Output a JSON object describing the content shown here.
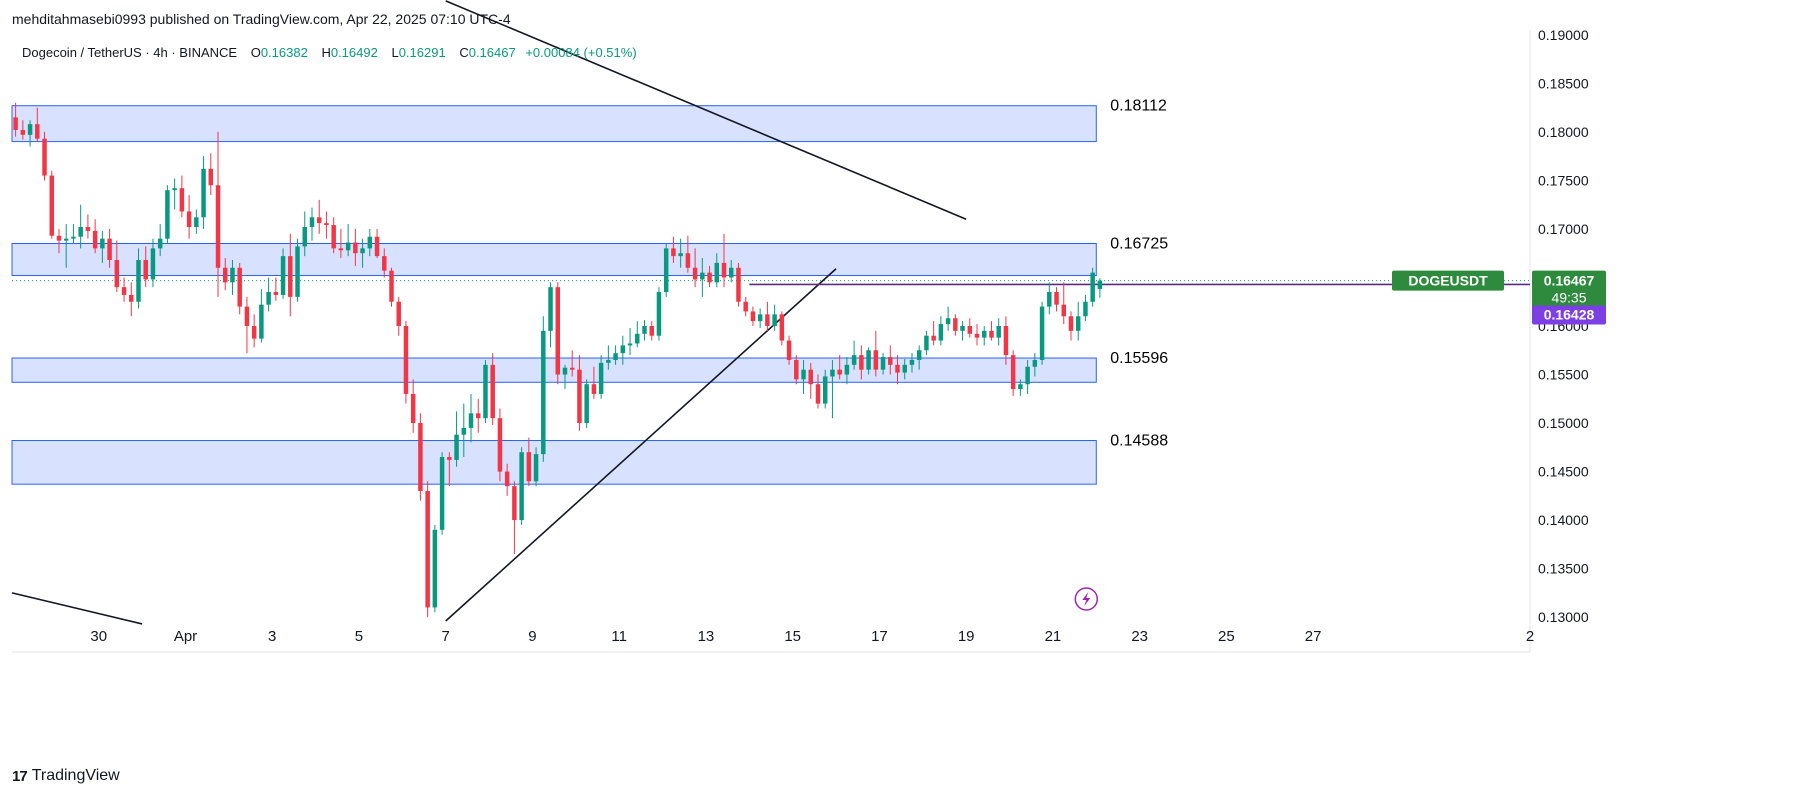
{
  "header": {
    "published_by": "mehditahmasebi0993 published on TradingView.com, Apr 22, 2025 07:10 UTC-4"
  },
  "symbol": {
    "name": "Dogecoin / TetherUS · 4h · BINANCE",
    "o_label": "O",
    "o": "0.16382",
    "h_label": "H",
    "h": "0.16492",
    "l_label": "L",
    "l": "0.16291",
    "c_label": "C",
    "c": "0.16467",
    "change": "+0.00084 (+0.51%)"
  },
  "footer": {
    "brand": "TradingView"
  },
  "colors": {
    "up": "#089981",
    "down": "#f23645",
    "zone_fill": "#d1dcfd",
    "zone_stroke": "#2962ff",
    "price_tag": "#2e8b3d",
    "prev_tag": "#7b3fe4",
    "trendline": "#131722",
    "grid": "#e0e3eb"
  },
  "icons": {
    "chart_bottom_icon": "lightning-bolt-icon"
  },
  "chart_data": {
    "type": "candlestick",
    "title": "",
    "ylim": [
      0.1295,
      0.1905
    ],
    "x_range": [
      "2025-03-28",
      "2025-05-02"
    ],
    "y_ticks": [
      "0.13000",
      "0.13500",
      "0.14000",
      "0.14500",
      "0.15000",
      "0.15500",
      "0.16000",
      "0.16500",
      "0.17000",
      "0.17500",
      "0.18000",
      "0.18500",
      "0.19000"
    ],
    "x_ticks": [
      {
        "label": "30",
        "date": "2025-03-30"
      },
      {
        "label": "Apr",
        "date": "2025-04-01"
      },
      {
        "label": "3",
        "date": "2025-04-03"
      },
      {
        "label": "5",
        "date": "2025-04-05"
      },
      {
        "label": "7",
        "date": "2025-04-07"
      },
      {
        "label": "9",
        "date": "2025-04-09"
      },
      {
        "label": "11",
        "date": "2025-04-11"
      },
      {
        "label": "13",
        "date": "2025-04-13"
      },
      {
        "label": "15",
        "date": "2025-04-15"
      },
      {
        "label": "17",
        "date": "2025-04-17"
      },
      {
        "label": "19",
        "date": "2025-04-19"
      },
      {
        "label": "21",
        "date": "2025-04-21"
      },
      {
        "label": "23",
        "date": "2025-04-23"
      },
      {
        "label": "25",
        "date": "2025-04-25"
      },
      {
        "label": "27",
        "date": "2025-04-27"
      },
      {
        "label": "2",
        "date": "2025-05-02"
      }
    ],
    "zones": [
      {
        "low": 0.179,
        "high": 0.1827,
        "start": "2025-03-28",
        "end": "2025-04-22",
        "label": "0.18112"
      },
      {
        "low": 0.1652,
        "high": 0.1685,
        "start": "2025-03-28",
        "end": "2025-04-22",
        "label": "0.16725"
      },
      {
        "low": 0.1542,
        "high": 0.1567,
        "start": "2025-03-28",
        "end": "2025-04-22",
        "label": "0.15596"
      },
      {
        "low": 0.1437,
        "high": 0.1482,
        "start": "2025-03-28",
        "end": "2025-04-22",
        "label": "0.14588"
      }
    ],
    "trendlines": [
      {
        "from": [
          "2025-04-07",
          0.1935
        ],
        "to": [
          "2025-04-19",
          0.171
        ]
      },
      {
        "from": [
          "2025-03-28",
          0.1325
        ],
        "to": [
          "2025-03-31",
          0.1293
        ]
      },
      {
        "from": [
          "2025-04-07",
          0.1296
        ],
        "to": [
          "2025-04-16",
          0.1659
        ]
      }
    ],
    "current_price": {
      "symbol": "DOGEUSDT",
      "price": "0.16467",
      "countdown": "49:35",
      "value": 0.16467
    },
    "prev_close": {
      "price": "0.16428",
      "value": 0.16428,
      "start": "2025-04-14"
    },
    "candles": [
      {
        "o": 0.1815,
        "h": 0.183,
        "l": 0.1795,
        "c": 0.1802
      },
      {
        "o": 0.1802,
        "h": 0.1812,
        "l": 0.1792,
        "c": 0.1797
      },
      {
        "o": 0.1797,
        "h": 0.1812,
        "l": 0.1785,
        "c": 0.1808
      },
      {
        "o": 0.1808,
        "h": 0.1825,
        "l": 0.179,
        "c": 0.1793
      },
      {
        "o": 0.1793,
        "h": 0.18,
        "l": 0.175,
        "c": 0.1755
      },
      {
        "o": 0.1755,
        "h": 0.176,
        "l": 0.169,
        "c": 0.1693
      },
      {
        "o": 0.1693,
        "h": 0.17,
        "l": 0.1675,
        "c": 0.1688
      },
      {
        "o": 0.1688,
        "h": 0.1705,
        "l": 0.166,
        "c": 0.169
      },
      {
        "o": 0.169,
        "h": 0.1705,
        "l": 0.1685,
        "c": 0.1692
      },
      {
        "o": 0.1692,
        "h": 0.1725,
        "l": 0.168,
        "c": 0.1702
      },
      {
        "o": 0.1702,
        "h": 0.1715,
        "l": 0.169,
        "c": 0.1698
      },
      {
        "o": 0.1698,
        "h": 0.171,
        "l": 0.1675,
        "c": 0.168
      },
      {
        "o": 0.168,
        "h": 0.1698,
        "l": 0.1665,
        "c": 0.169
      },
      {
        "o": 0.169,
        "h": 0.17,
        "l": 0.166,
        "c": 0.1668
      },
      {
        "o": 0.1668,
        "h": 0.1688,
        "l": 0.1635,
        "c": 0.164
      },
      {
        "o": 0.164,
        "h": 0.165,
        "l": 0.1625,
        "c": 0.1632
      },
      {
        "o": 0.1632,
        "h": 0.1645,
        "l": 0.161,
        "c": 0.1625
      },
      {
        "o": 0.1625,
        "h": 0.168,
        "l": 0.1618,
        "c": 0.1668
      },
      {
        "o": 0.1668,
        "h": 0.1682,
        "l": 0.164,
        "c": 0.1648
      },
      {
        "o": 0.1648,
        "h": 0.169,
        "l": 0.164,
        "c": 0.168
      },
      {
        "o": 0.168,
        "h": 0.1705,
        "l": 0.1672,
        "c": 0.169
      },
      {
        "o": 0.169,
        "h": 0.1745,
        "l": 0.1685,
        "c": 0.174
      },
      {
        "o": 0.174,
        "h": 0.1752,
        "l": 0.172,
        "c": 0.1742
      },
      {
        "o": 0.1742,
        "h": 0.1755,
        "l": 0.1712,
        "c": 0.1718
      },
      {
        "o": 0.1718,
        "h": 0.1735,
        "l": 0.169,
        "c": 0.1702
      },
      {
        "o": 0.1702,
        "h": 0.172,
        "l": 0.1695,
        "c": 0.1712
      },
      {
        "o": 0.1712,
        "h": 0.1775,
        "l": 0.17,
        "c": 0.1762
      },
      {
        "o": 0.1762,
        "h": 0.1778,
        "l": 0.1735,
        "c": 0.1745
      },
      {
        "o": 0.1745,
        "h": 0.18,
        "l": 0.163,
        "c": 0.166
      },
      {
        "o": 0.166,
        "h": 0.167,
        "l": 0.1637,
        "c": 0.1645
      },
      {
        "o": 0.1645,
        "h": 0.1668,
        "l": 0.1632,
        "c": 0.166
      },
      {
        "o": 0.166,
        "h": 0.1665,
        "l": 0.1612,
        "c": 0.162
      },
      {
        "o": 0.162,
        "h": 0.163,
        "l": 0.1572,
        "c": 0.16
      },
      {
        "o": 0.16,
        "h": 0.1612,
        "l": 0.1578,
        "c": 0.1587
      },
      {
        "o": 0.1587,
        "h": 0.1638,
        "l": 0.1583,
        "c": 0.1622
      },
      {
        "o": 0.1622,
        "h": 0.165,
        "l": 0.1615,
        "c": 0.1635
      },
      {
        "o": 0.1635,
        "h": 0.165,
        "l": 0.1626,
        "c": 0.1632
      },
      {
        "o": 0.1632,
        "h": 0.168,
        "l": 0.1628,
        "c": 0.1672
      },
      {
        "o": 0.1672,
        "h": 0.1695,
        "l": 0.161,
        "c": 0.163
      },
      {
        "o": 0.163,
        "h": 0.169,
        "l": 0.1625,
        "c": 0.1682
      },
      {
        "o": 0.1682,
        "h": 0.1718,
        "l": 0.1672,
        "c": 0.1702
      },
      {
        "o": 0.1702,
        "h": 0.1722,
        "l": 0.1688,
        "c": 0.1712
      },
      {
        "o": 0.1712,
        "h": 0.173,
        "l": 0.1695,
        "c": 0.1706
      },
      {
        "o": 0.1706,
        "h": 0.1718,
        "l": 0.169,
        "c": 0.1704
      },
      {
        "o": 0.1704,
        "h": 0.1712,
        "l": 0.1675,
        "c": 0.168
      },
      {
        "o": 0.168,
        "h": 0.17,
        "l": 0.167,
        "c": 0.1678
      },
      {
        "o": 0.1678,
        "h": 0.1705,
        "l": 0.1672,
        "c": 0.1686
      },
      {
        "o": 0.1686,
        "h": 0.17,
        "l": 0.1662,
        "c": 0.1675
      },
      {
        "o": 0.1675,
        "h": 0.169,
        "l": 0.166,
        "c": 0.168
      },
      {
        "o": 0.168,
        "h": 0.17,
        "l": 0.1672,
        "c": 0.1692
      },
      {
        "o": 0.1692,
        "h": 0.17,
        "l": 0.167,
        "c": 0.1672
      },
      {
        "o": 0.1672,
        "h": 0.168,
        "l": 0.165,
        "c": 0.1657
      },
      {
        "o": 0.1657,
        "h": 0.166,
        "l": 0.162,
        "c": 0.1625
      },
      {
        "o": 0.1625,
        "h": 0.163,
        "l": 0.159,
        "c": 0.16
      },
      {
        "o": 0.16,
        "h": 0.1605,
        "l": 0.152,
        "c": 0.153
      },
      {
        "o": 0.153,
        "h": 0.1545,
        "l": 0.149,
        "c": 0.15
      },
      {
        "o": 0.15,
        "h": 0.151,
        "l": 0.142,
        "c": 0.143
      },
      {
        "o": 0.143,
        "h": 0.144,
        "l": 0.13,
        "c": 0.131
      },
      {
        "o": 0.131,
        "h": 0.1395,
        "l": 0.1305,
        "c": 0.139
      },
      {
        "o": 0.139,
        "h": 0.147,
        "l": 0.1385,
        "c": 0.1465
      },
      {
        "o": 0.1465,
        "h": 0.147,
        "l": 0.1435,
        "c": 0.1462
      },
      {
        "o": 0.1462,
        "h": 0.1512,
        "l": 0.1455,
        "c": 0.1488
      },
      {
        "o": 0.1488,
        "h": 0.152,
        "l": 0.1465,
        "c": 0.1495
      },
      {
        "o": 0.1495,
        "h": 0.153,
        "l": 0.148,
        "c": 0.151
      },
      {
        "o": 0.151,
        "h": 0.1525,
        "l": 0.149,
        "c": 0.1505
      },
      {
        "o": 0.1505,
        "h": 0.1565,
        "l": 0.15,
        "c": 0.156
      },
      {
        "o": 0.156,
        "h": 0.1572,
        "l": 0.1498,
        "c": 0.1505
      },
      {
        "o": 0.1505,
        "h": 0.1515,
        "l": 0.144,
        "c": 0.145
      },
      {
        "o": 0.145,
        "h": 0.1458,
        "l": 0.1425,
        "c": 0.1435
      },
      {
        "o": 0.1435,
        "h": 0.144,
        "l": 0.1365,
        "c": 0.14
      },
      {
        "o": 0.14,
        "h": 0.1475,
        "l": 0.1395,
        "c": 0.147
      },
      {
        "o": 0.147,
        "h": 0.1485,
        "l": 0.1435,
        "c": 0.144
      },
      {
        "o": 0.144,
        "h": 0.1475,
        "l": 0.1435,
        "c": 0.1468
      },
      {
        "o": 0.1468,
        "h": 0.161,
        "l": 0.146,
        "c": 0.1595
      },
      {
        "o": 0.1595,
        "h": 0.1645,
        "l": 0.1578,
        "c": 0.164
      },
      {
        "o": 0.164,
        "h": 0.1645,
        "l": 0.154,
        "c": 0.155
      },
      {
        "o": 0.155,
        "h": 0.156,
        "l": 0.1535,
        "c": 0.1557
      },
      {
        "o": 0.1557,
        "h": 0.1575,
        "l": 0.1548,
        "c": 0.1555
      },
      {
        "o": 0.1555,
        "h": 0.157,
        "l": 0.1492,
        "c": 0.15
      },
      {
        "o": 0.15,
        "h": 0.1545,
        "l": 0.1495,
        "c": 0.154
      },
      {
        "o": 0.154,
        "h": 0.1558,
        "l": 0.1525,
        "c": 0.153
      },
      {
        "o": 0.153,
        "h": 0.157,
        "l": 0.1525,
        "c": 0.1562
      },
      {
        "o": 0.1562,
        "h": 0.158,
        "l": 0.1555,
        "c": 0.1565
      },
      {
        "o": 0.1565,
        "h": 0.158,
        "l": 0.156,
        "c": 0.1572
      },
      {
        "o": 0.1572,
        "h": 0.159,
        "l": 0.156,
        "c": 0.158
      },
      {
        "o": 0.158,
        "h": 0.1598,
        "l": 0.157,
        "c": 0.1582
      },
      {
        "o": 0.1582,
        "h": 0.1605,
        "l": 0.1578,
        "c": 0.1592
      },
      {
        "o": 0.1592,
        "h": 0.1606,
        "l": 0.1585,
        "c": 0.16
      },
      {
        "o": 0.16,
        "h": 0.1605,
        "l": 0.1585,
        "c": 0.159
      },
      {
        "o": 0.159,
        "h": 0.164,
        "l": 0.1585,
        "c": 0.1635
      },
      {
        "o": 0.1635,
        "h": 0.1685,
        "l": 0.163,
        "c": 0.168
      },
      {
        "o": 0.168,
        "h": 0.1692,
        "l": 0.1665,
        "c": 0.1672
      },
      {
        "o": 0.1672,
        "h": 0.169,
        "l": 0.166,
        "c": 0.1675
      },
      {
        "o": 0.1675,
        "h": 0.1693,
        "l": 0.1655,
        "c": 0.166
      },
      {
        "o": 0.166,
        "h": 0.168,
        "l": 0.164,
        "c": 0.1648
      },
      {
        "o": 0.1648,
        "h": 0.167,
        "l": 0.163,
        "c": 0.1655
      },
      {
        "o": 0.1655,
        "h": 0.1662,
        "l": 0.164,
        "c": 0.1645
      },
      {
        "o": 0.1645,
        "h": 0.1675,
        "l": 0.164,
        "c": 0.1665
      },
      {
        "o": 0.1665,
        "h": 0.1695,
        "l": 0.164,
        "c": 0.165
      },
      {
        "o": 0.165,
        "h": 0.1668,
        "l": 0.1645,
        "c": 0.166
      },
      {
        "o": 0.166,
        "h": 0.1665,
        "l": 0.162,
        "c": 0.1625
      },
      {
        "o": 0.1625,
        "h": 0.163,
        "l": 0.161,
        "c": 0.1615
      },
      {
        "o": 0.1615,
        "h": 0.162,
        "l": 0.16,
        "c": 0.1605
      },
      {
        "o": 0.1605,
        "h": 0.1618,
        "l": 0.1598,
        "c": 0.1612
      },
      {
        "o": 0.1612,
        "h": 0.1625,
        "l": 0.1595,
        "c": 0.16
      },
      {
        "o": 0.16,
        "h": 0.1622,
        "l": 0.1595,
        "c": 0.1612
      },
      {
        "o": 0.1612,
        "h": 0.1615,
        "l": 0.158,
        "c": 0.1585
      },
      {
        "o": 0.1585,
        "h": 0.159,
        "l": 0.156,
        "c": 0.1565
      },
      {
        "o": 0.1565,
        "h": 0.157,
        "l": 0.154,
        "c": 0.1545
      },
      {
        "o": 0.1545,
        "h": 0.1565,
        "l": 0.153,
        "c": 0.1555
      },
      {
        "o": 0.1555,
        "h": 0.1562,
        "l": 0.1525,
        "c": 0.154
      },
      {
        "o": 0.154,
        "h": 0.155,
        "l": 0.1515,
        "c": 0.152
      },
      {
        "o": 0.152,
        "h": 0.1555,
        "l": 0.1515,
        "c": 0.1548
      },
      {
        "o": 0.1548,
        "h": 0.1565,
        "l": 0.1505,
        "c": 0.1555
      },
      {
        "o": 0.1555,
        "h": 0.157,
        "l": 0.1545,
        "c": 0.155
      },
      {
        "o": 0.155,
        "h": 0.1568,
        "l": 0.154,
        "c": 0.156
      },
      {
        "o": 0.156,
        "h": 0.1585,
        "l": 0.1555,
        "c": 0.157
      },
      {
        "o": 0.157,
        "h": 0.158,
        "l": 0.1545,
        "c": 0.1555
      },
      {
        "o": 0.1555,
        "h": 0.1578,
        "l": 0.155,
        "c": 0.1575
      },
      {
        "o": 0.1575,
        "h": 0.1595,
        "l": 0.1548,
        "c": 0.1555
      },
      {
        "o": 0.1555,
        "h": 0.1572,
        "l": 0.155,
        "c": 0.1568
      },
      {
        "o": 0.1568,
        "h": 0.158,
        "l": 0.155,
        "c": 0.156
      },
      {
        "o": 0.156,
        "h": 0.157,
        "l": 0.154,
        "c": 0.1552
      },
      {
        "o": 0.1552,
        "h": 0.1566,
        "l": 0.1545,
        "c": 0.156
      },
      {
        "o": 0.156,
        "h": 0.1572,
        "l": 0.1552,
        "c": 0.1565
      },
      {
        "o": 0.1565,
        "h": 0.158,
        "l": 0.1555,
        "c": 0.1575
      },
      {
        "o": 0.1575,
        "h": 0.1595,
        "l": 0.157,
        "c": 0.159
      },
      {
        "o": 0.159,
        "h": 0.1605,
        "l": 0.158,
        "c": 0.1585
      },
      {
        "o": 0.1585,
        "h": 0.161,
        "l": 0.158,
        "c": 0.1602
      },
      {
        "o": 0.1602,
        "h": 0.162,
        "l": 0.1595,
        "c": 0.1608
      },
      {
        "o": 0.1608,
        "h": 0.1612,
        "l": 0.159,
        "c": 0.1595
      },
      {
        "o": 0.1595,
        "h": 0.1605,
        "l": 0.1585,
        "c": 0.16
      },
      {
        "o": 0.16,
        "h": 0.1608,
        "l": 0.1588,
        "c": 0.1592
      },
      {
        "o": 0.1592,
        "h": 0.1602,
        "l": 0.158,
        "c": 0.1588
      },
      {
        "o": 0.1588,
        "h": 0.16,
        "l": 0.158,
        "c": 0.1595
      },
      {
        "o": 0.1595,
        "h": 0.1605,
        "l": 0.1585,
        "c": 0.1588
      },
      {
        "o": 0.1588,
        "h": 0.1608,
        "l": 0.158,
        "c": 0.16
      },
      {
        "o": 0.16,
        "h": 0.161,
        "l": 0.156,
        "c": 0.157
      },
      {
        "o": 0.157,
        "h": 0.1575,
        "l": 0.1528,
        "c": 0.1535
      },
      {
        "o": 0.1535,
        "h": 0.1545,
        "l": 0.1528,
        "c": 0.154
      },
      {
        "o": 0.154,
        "h": 0.1565,
        "l": 0.153,
        "c": 0.1558
      },
      {
        "o": 0.1558,
        "h": 0.1572,
        "l": 0.1548,
        "c": 0.1565
      },
      {
        "o": 0.1565,
        "h": 0.1625,
        "l": 0.156,
        "c": 0.162
      },
      {
        "o": 0.162,
        "h": 0.1645,
        "l": 0.1612,
        "c": 0.1635
      },
      {
        "o": 0.1635,
        "h": 0.164,
        "l": 0.1615,
        "c": 0.1622
      },
      {
        "o": 0.1622,
        "h": 0.1645,
        "l": 0.1602,
        "c": 0.161
      },
      {
        "o": 0.161,
        "h": 0.1615,
        "l": 0.1585,
        "c": 0.1595
      },
      {
        "o": 0.1595,
        "h": 0.1625,
        "l": 0.1585,
        "c": 0.161
      },
      {
        "o": 0.161,
        "h": 0.1632,
        "l": 0.1605,
        "c": 0.1625
      },
      {
        "o": 0.1625,
        "h": 0.166,
        "l": 0.162,
        "c": 0.1655
      },
      {
        "o": 0.16382,
        "h": 0.16492,
        "l": 0.16291,
        "c": 0.16467
      }
    ]
  }
}
